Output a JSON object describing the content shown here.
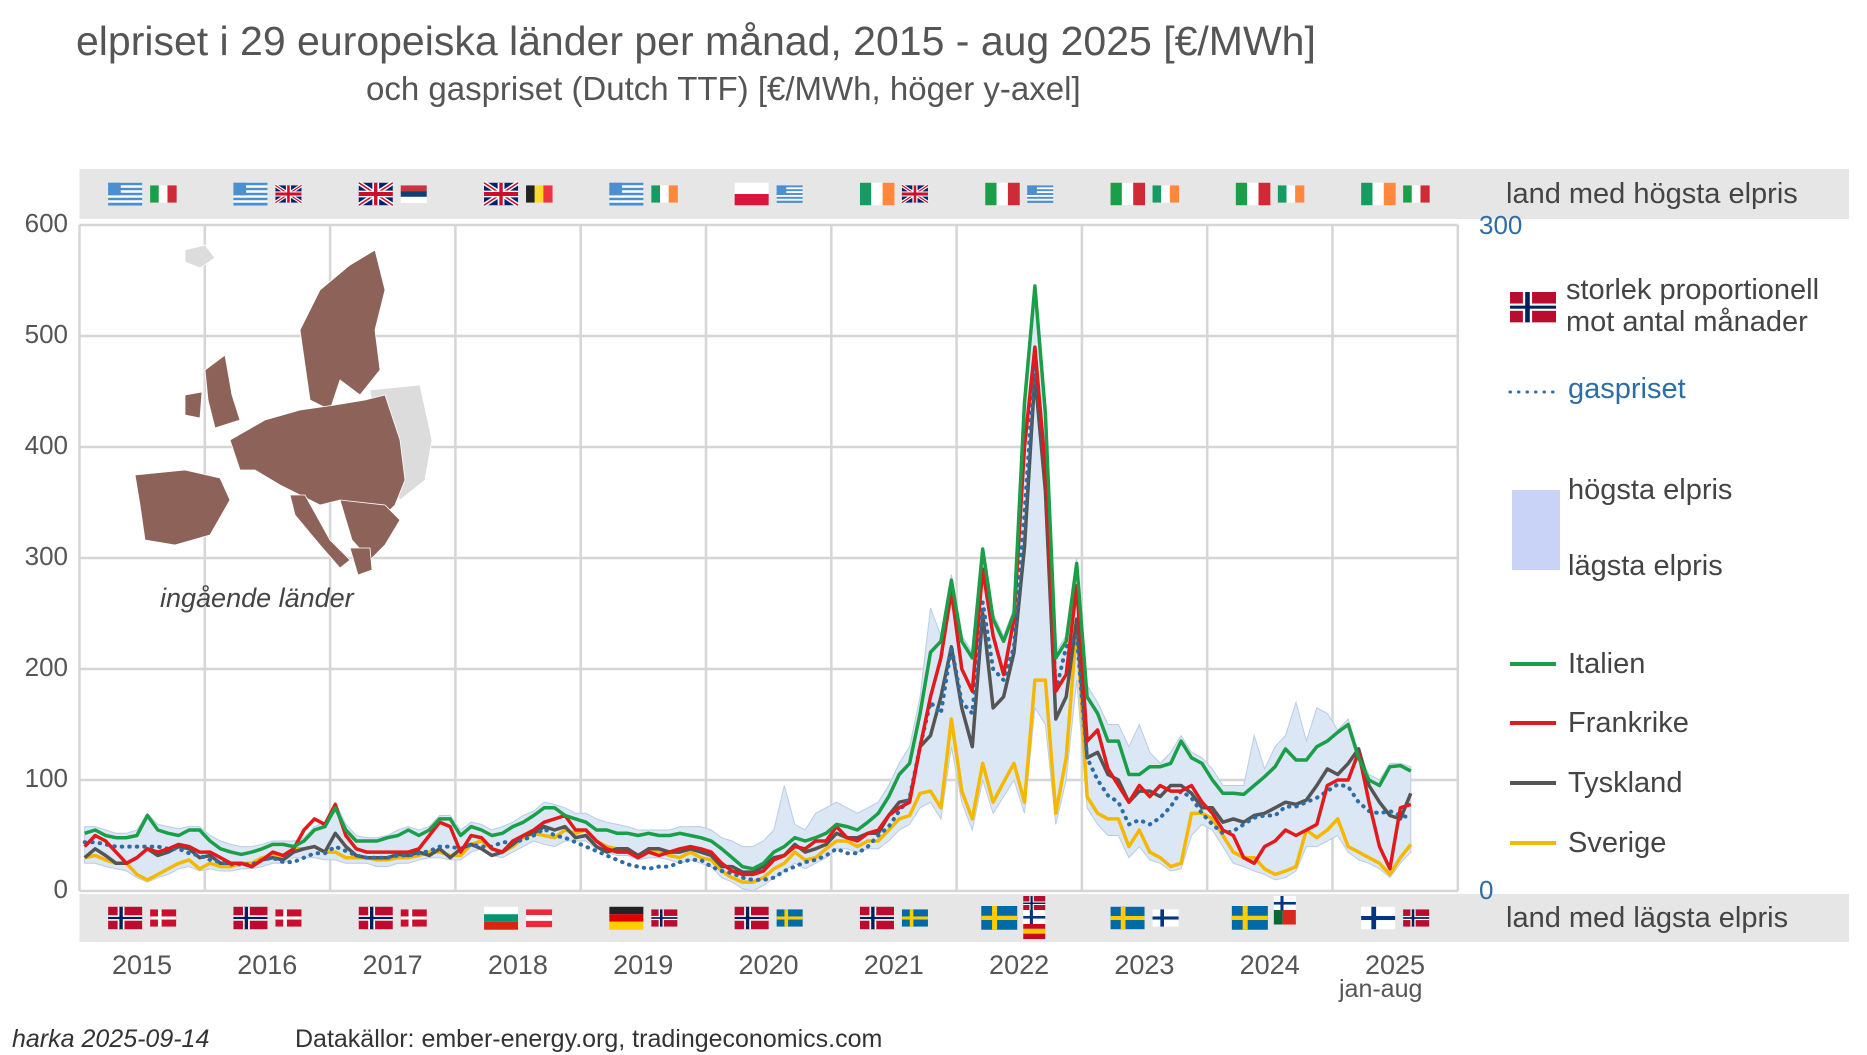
{
  "title": "elpriset i 29 europeiska länder per månad, 2015 - aug 2025 [€/MWh]",
  "subtitle": "och gaspriset (Dutch TTF) [€/MWh, höger y-axel]",
  "footer": {
    "author": "harka 2025-09-14",
    "sources": "Datakällor: ember-energy.org, tradingeconomics.com"
  },
  "map_label": "ingående länder",
  "flag_rows": {
    "top_label": "land med högsta elpris",
    "bottom_label": "land med lägsta elpris",
    "highest": [
      [
        "gr",
        "it"
      ],
      [
        "gr",
        "uk"
      ],
      [
        "uk",
        "rs"
      ],
      [
        "uk",
        "be"
      ],
      [
        "gr",
        "ie"
      ],
      [
        "pl",
        "gr"
      ],
      [
        "ie",
        "uk"
      ],
      [
        "it",
        "gr"
      ],
      [
        "it",
        "ie"
      ],
      [
        "it",
        "ie"
      ],
      [
        "ie",
        "it"
      ]
    ],
    "lowest": [
      [
        "no",
        "dk"
      ],
      [
        "no",
        "dk"
      ],
      [
        "no",
        "dk"
      ],
      [
        "bg",
        "at"
      ],
      [
        "de",
        "no"
      ],
      [
        "no",
        "se"
      ],
      [
        "no",
        "se"
      ],
      [
        "se",
        "no",
        "fi",
        "es"
      ],
      [
        "se",
        "fi"
      ],
      [
        "se",
        "fi",
        "pt"
      ],
      [
        "fi",
        "no"
      ]
    ]
  },
  "legend": {
    "flag_note_1": "storlek proportionell",
    "flag_note_2": "mot antal månader",
    "gas": "gaspriset",
    "band_high": "högsta elpris",
    "band_low": "lägsta elpris",
    "italy": "Italien",
    "france": "Frankrike",
    "germany": "Tyskland",
    "sweden": "Sverige"
  },
  "colors": {
    "italy": "#1a9e48",
    "france": "#e31a1c",
    "germany": "#555555",
    "sweden": "#f5b800",
    "gas": "#2e6da4",
    "band": "#dce7f5",
    "band_edge": "#b9cce6",
    "map": "#8c6259",
    "map_grey": "#dcdcdc"
  },
  "chart_data": {
    "type": "line",
    "start": "2015-01",
    "frequency": "monthly",
    "x_tick_labels": [
      "2015",
      "2016",
      "2017",
      "2018",
      "2019",
      "2020",
      "2021",
      "2022",
      "2023",
      "2024",
      "2025"
    ],
    "x_tick_sublabel": "jan-aug",
    "ylabel_left": "€/MWh",
    "ylim_left": [
      0,
      600
    ],
    "yticks_left": [
      "0",
      "100",
      "200",
      "300",
      "400",
      "500",
      "600"
    ],
    "ylim_right": [
      0,
      300
    ],
    "yticks_right": [
      "0",
      "300"
    ],
    "grid": true,
    "series": [
      {
        "key": "band_max",
        "name": "högsta elpris",
        "values": [
          58,
          58,
          55,
          52,
          52,
          55,
          70,
          60,
          58,
          56,
          58,
          58,
          50,
          45,
          42,
          40,
          40,
          42,
          45,
          45,
          45,
          48,
          58,
          62,
          80,
          60,
          50,
          48,
          48,
          50,
          55,
          58,
          55,
          58,
          68,
          68,
          55,
          62,
          60,
          55,
          58,
          62,
          68,
          72,
          80,
          78,
          75,
          70,
          70,
          65,
          62,
          60,
          58,
          55,
          55,
          55,
          55,
          58,
          58,
          58,
          55,
          48,
          45,
          40,
          40,
          45,
          55,
          95,
          60,
          55,
          70,
          75,
          80,
          75,
          70,
          75,
          80,
          95,
          115,
          130,
          175,
          255,
          230,
          285,
          230,
          215,
          310,
          250,
          230,
          255,
          445,
          545,
          435,
          215,
          230,
          300,
          185,
          170,
          150,
          150,
          130,
          150,
          125,
          115,
          125,
          140,
          125,
          120,
          110,
          95,
          95,
          95,
          140,
          110,
          130,
          140,
          170,
          135,
          165,
          160,
          145,
          155,
          125,
          105,
          100,
          115,
          115,
          112
        ]
      },
      {
        "key": "band_min",
        "name": "lägsta elpris",
        "values": [
          25,
          25,
          22,
          20,
          18,
          12,
          8,
          12,
          15,
          20,
          22,
          18,
          20,
          18,
          18,
          20,
          20,
          22,
          25,
          25,
          30,
          30,
          30,
          28,
          28,
          25,
          25,
          25,
          22,
          22,
          25,
          25,
          28,
          30,
          30,
          28,
          28,
          35,
          38,
          32,
          30,
          35,
          40,
          45,
          42,
          40,
          45,
          45,
          45,
          38,
          35,
          32,
          32,
          28,
          30,
          30,
          28,
          25,
          28,
          25,
          22,
          12,
          8,
          2,
          0,
          5,
          12,
          18,
          25,
          20,
          25,
          30,
          38,
          38,
          35,
          38,
          38,
          45,
          55,
          60,
          75,
          80,
          65,
          130,
          80,
          55,
          100,
          70,
          85,
          100,
          70,
          165,
          150,
          60,
          100,
          190,
          75,
          60,
          50,
          50,
          30,
          40,
          28,
          25,
          18,
          20,
          50,
          60,
          55,
          40,
          25,
          22,
          18,
          15,
          10,
          12,
          18,
          40,
          40,
          45,
          50,
          35,
          28,
          25,
          20,
          12,
          25,
          35
        ]
      },
      {
        "key": "gas",
        "name": "gaspriset",
        "axis": "right",
        "values": [
          22,
          22,
          21,
          20,
          20,
          20,
          20,
          20,
          19,
          19,
          17,
          16,
          14,
          13,
          12,
          12,
          12,
          14,
          15,
          13,
          13,
          15,
          17,
          17,
          20,
          18,
          16,
          15,
          15,
          15,
          16,
          16,
          17,
          18,
          20,
          20,
          19,
          21,
          20,
          20,
          22,
          22,
          23,
          25,
          28,
          25,
          24,
          22,
          20,
          18,
          16,
          14,
          12,
          11,
          10,
          11,
          11,
          13,
          14,
          14,
          11,
          9,
          8,
          6,
          5,
          5,
          6,
          9,
          11,
          13,
          14,
          16,
          19,
          17,
          17,
          20,
          25,
          29,
          36,
          42,
          65,
          85,
          80,
          110,
          85,
          80,
          130,
          100,
          95,
          110,
          170,
          240,
          190,
          90,
          110,
          115,
          60,
          50,
          43,
          40,
          30,
          32,
          30,
          33,
          38,
          45,
          42,
          35,
          30,
          26,
          27,
          30,
          33,
          34,
          34,
          38,
          38,
          40,
          42,
          45,
          48,
          47,
          40,
          36,
          35,
          36,
          34,
          33
        ]
      },
      {
        "key": "sweden",
        "name": "Sverige",
        "values": [
          30,
          32,
          28,
          25,
          25,
          15,
          10,
          15,
          20,
          25,
          28,
          20,
          25,
          22,
          22,
          25,
          25,
          30,
          32,
          30,
          38,
          38,
          40,
          35,
          35,
          30,
          30,
          30,
          28,
          28,
          30,
          30,
          32,
          35,
          35,
          32,
          32,
          42,
          45,
          38,
          35,
          40,
          48,
          52,
          50,
          48,
          55,
          52,
          55,
          45,
          40,
          38,
          38,
          32,
          36,
          36,
          32,
          30,
          35,
          30,
          28,
          18,
          12,
          8,
          8,
          12,
          20,
          25,
          35,
          28,
          30,
          38,
          45,
          45,
          40,
          45,
          45,
          55,
          65,
          68,
          88,
          90,
          75,
          155,
          90,
          65,
          115,
          80,
          98,
          115,
          80,
          190,
          190,
          70,
          120,
          240,
          85,
          70,
          65,
          65,
          40,
          55,
          35,
          30,
          22,
          25,
          70,
          70,
          65,
          50,
          35,
          30,
          30,
          20,
          15,
          18,
          22,
          55,
          48,
          55,
          65,
          40,
          35,
          30,
          25,
          15,
          30,
          42
        ]
      },
      {
        "key": "germany",
        "name": "Tyskland",
        "values": [
          30,
          38,
          32,
          25,
          25,
          30,
          38,
          32,
          35,
          40,
          38,
          30,
          32,
          25,
          25,
          25,
          22,
          28,
          30,
          28,
          35,
          38,
          40,
          35,
          52,
          40,
          32,
          30,
          30,
          30,
          33,
          32,
          35,
          32,
          38,
          30,
          38,
          42,
          38,
          32,
          35,
          42,
          50,
          52,
          58,
          55,
          58,
          48,
          50,
          40,
          35,
          38,
          38,
          32,
          38,
          38,
          35,
          35,
          38,
          35,
          32,
          22,
          22,
          17,
          17,
          22,
          30,
          32,
          42,
          35,
          38,
          42,
          52,
          48,
          48,
          52,
          52,
          68,
          80,
          82,
          130,
          140,
          175,
          220,
          165,
          130,
          250,
          165,
          175,
          215,
          310,
          465,
          360,
          155,
          175,
          245,
          120,
          125,
          105,
          100,
          80,
          90,
          90,
          85,
          95,
          95,
          88,
          75,
          75,
          62,
          65,
          62,
          68,
          70,
          75,
          80,
          78,
          82,
          95,
          110,
          105,
          115,
          128,
          95,
          80,
          68,
          65,
          88
        ]
      },
      {
        "key": "france",
        "name": "Frankrike",
        "values": [
          40,
          50,
          45,
          35,
          25,
          30,
          38,
          35,
          38,
          42,
          40,
          35,
          35,
          30,
          25,
          25,
          22,
          28,
          35,
          32,
          38,
          55,
          65,
          60,
          78,
          50,
          38,
          35,
          35,
          35,
          35,
          35,
          38,
          50,
          62,
          58,
          35,
          50,
          48,
          38,
          35,
          45,
          50,
          55,
          62,
          65,
          68,
          55,
          55,
          45,
          38,
          35,
          35,
          30,
          35,
          32,
          35,
          38,
          40,
          38,
          35,
          25,
          18,
          15,
          15,
          18,
          28,
          32,
          40,
          38,
          45,
          45,
          58,
          48,
          45,
          52,
          55,
          68,
          75,
          80,
          130,
          175,
          210,
          270,
          200,
          180,
          290,
          230,
          195,
          245,
          400,
          490,
          380,
          180,
          195,
          275,
          135,
          145,
          110,
          95,
          80,
          95,
          85,
          95,
          90,
          90,
          95,
          80,
          70,
          55,
          50,
          30,
          25,
          40,
          45,
          55,
          50,
          55,
          60,
          95,
          100,
          100,
          125,
          80,
          40,
          20,
          75,
          78
        ]
      },
      {
        "key": "italy",
        "name": "Italien",
        "values": [
          52,
          55,
          50,
          48,
          48,
          50,
          68,
          55,
          52,
          50,
          55,
          55,
          45,
          38,
          35,
          33,
          35,
          38,
          42,
          42,
          40,
          45,
          55,
          58,
          75,
          55,
          45,
          45,
          45,
          48,
          50,
          55,
          50,
          55,
          65,
          65,
          50,
          58,
          55,
          50,
          52,
          58,
          62,
          68,
          75,
          75,
          68,
          65,
          62,
          55,
          55,
          52,
          52,
          50,
          52,
          50,
          50,
          52,
          50,
          48,
          45,
          38,
          30,
          22,
          20,
          25,
          35,
          40,
          48,
          45,
          48,
          52,
          60,
          58,
          55,
          62,
          70,
          85,
          105,
          115,
          160,
          215,
          225,
          280,
          225,
          210,
          308,
          245,
          225,
          250,
          440,
          545,
          430,
          210,
          225,
          295,
          175,
          160,
          135,
          135,
          105,
          105,
          112,
          112,
          115,
          135,
          120,
          115,
          100,
          88,
          88,
          87,
          95,
          103,
          112,
          128,
          118,
          118,
          130,
          135,
          143,
          150,
          120,
          100,
          95,
          112,
          113,
          108
        ]
      }
    ]
  }
}
